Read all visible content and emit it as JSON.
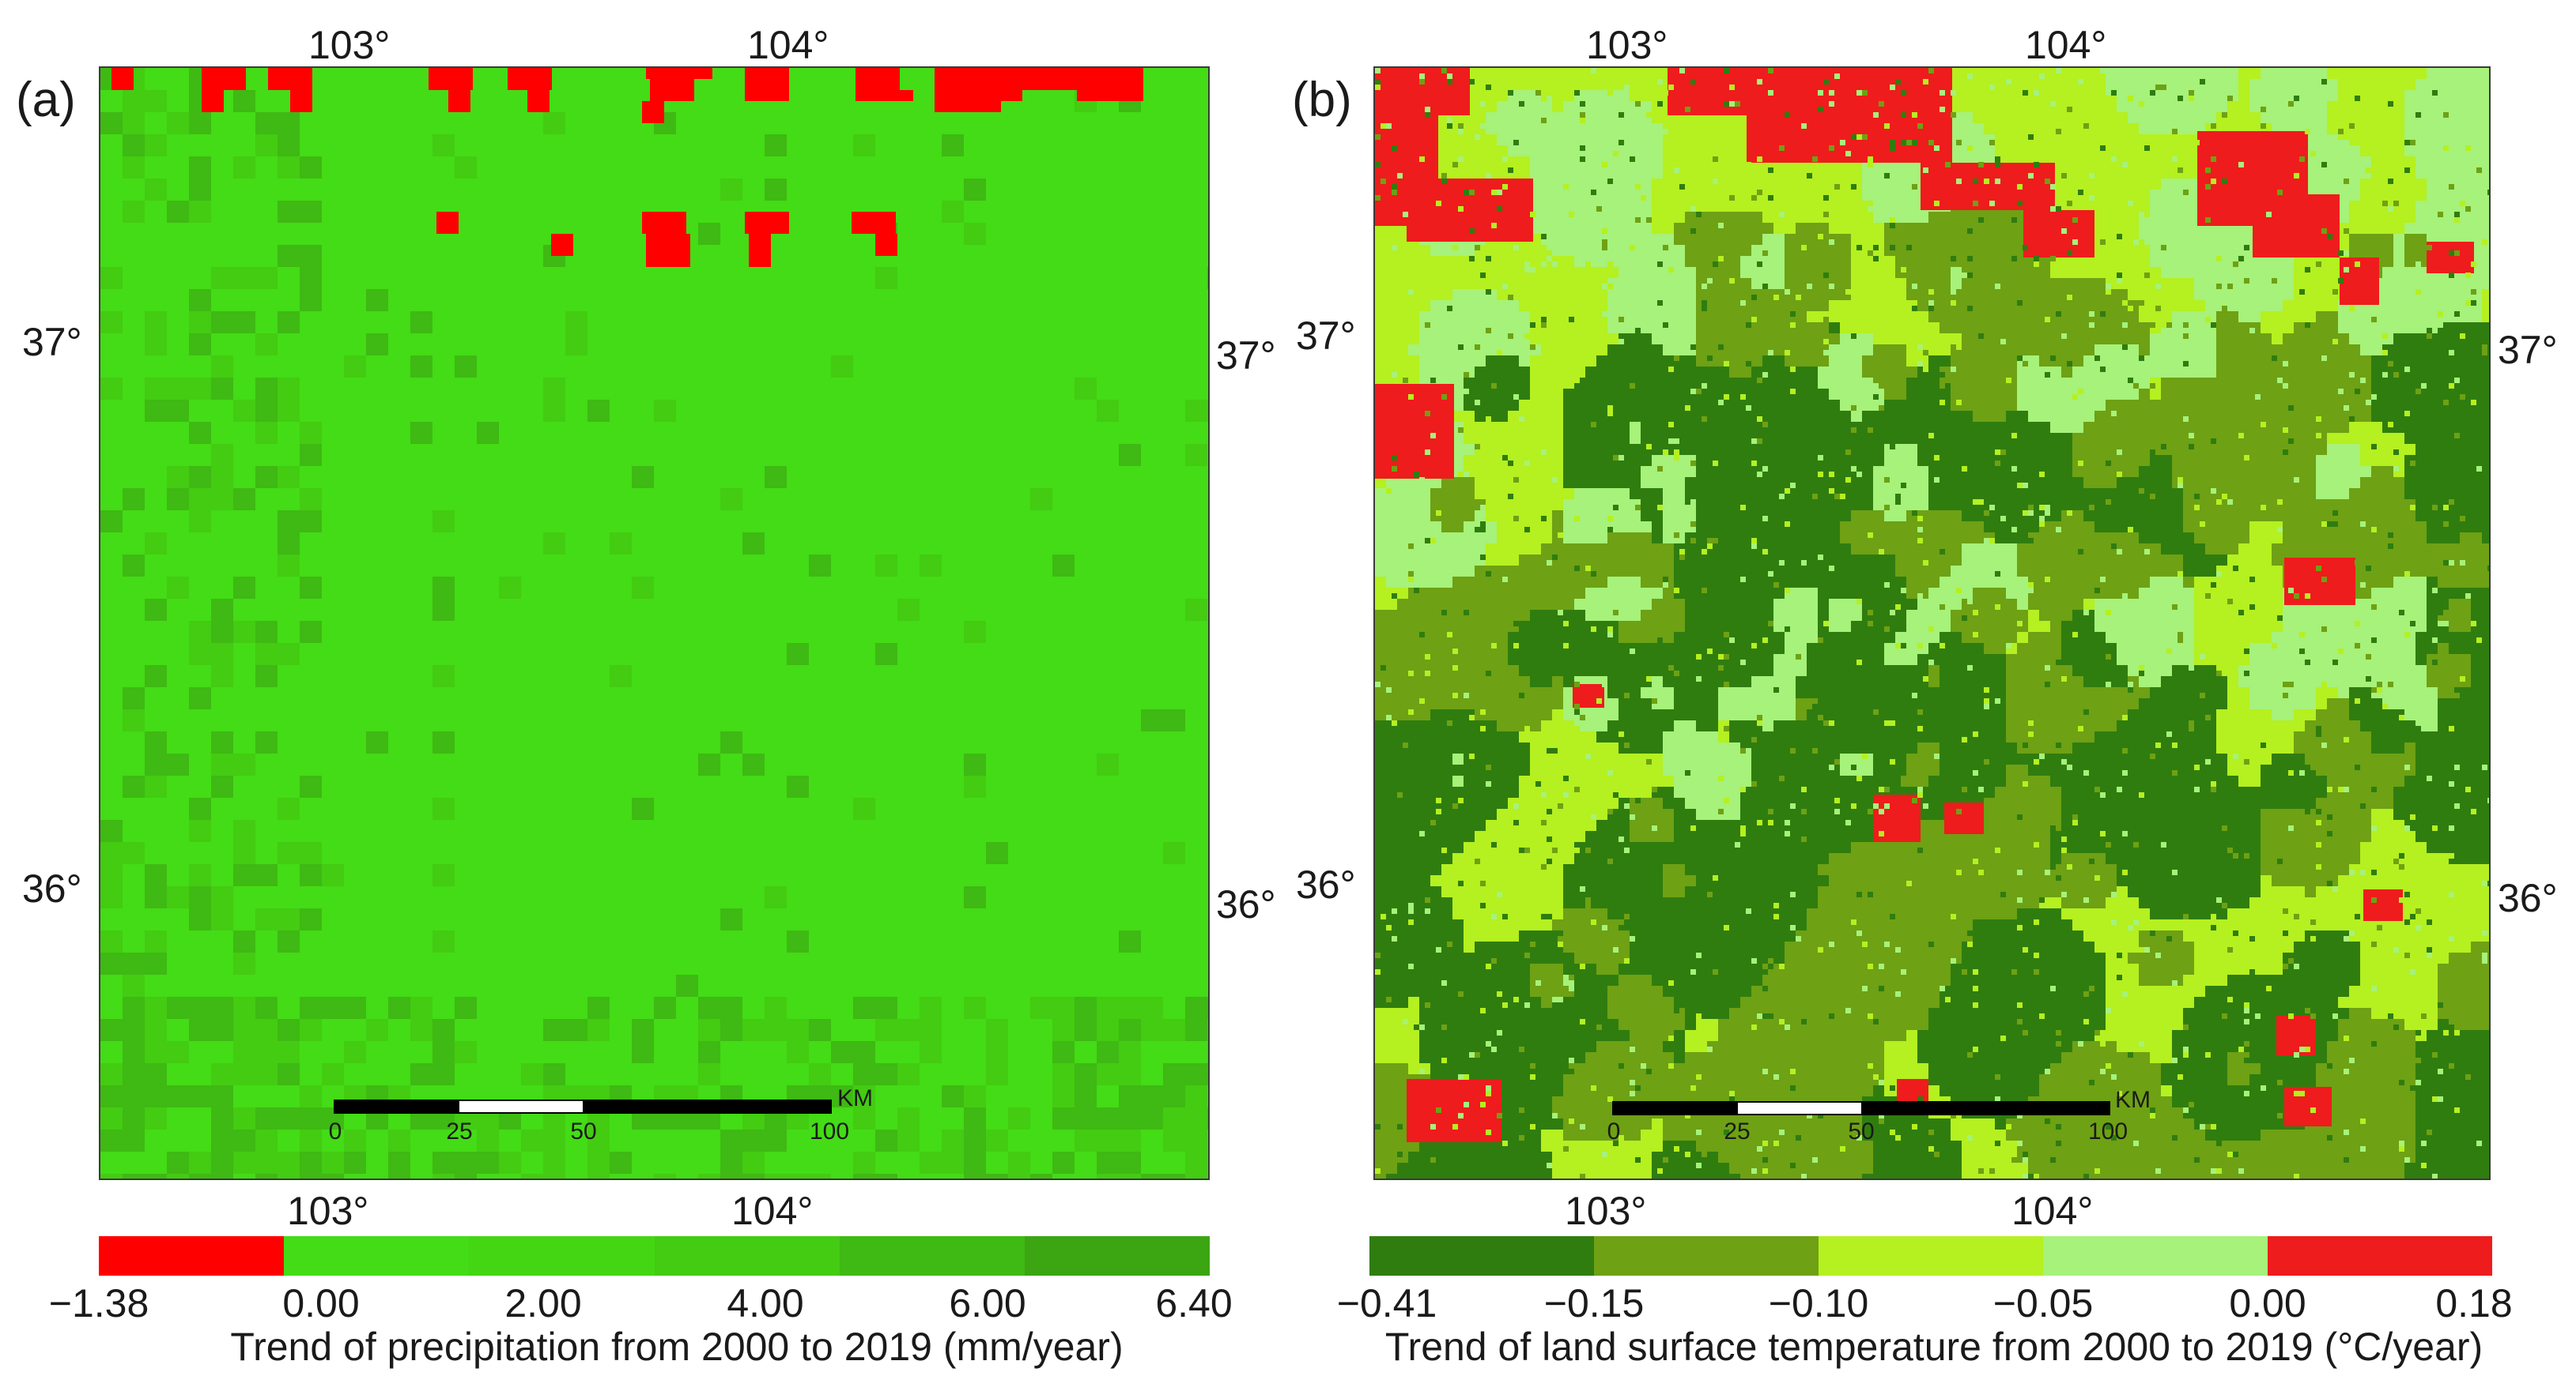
{
  "panels": [
    {
      "label": "(a)",
      "top_lon_labels": [
        "103°",
        "104°"
      ],
      "bottom_lon_labels": [
        "103°",
        "104°"
      ],
      "left_lat_labels": [
        "37°",
        "36°"
      ],
      "right_lat_labels": [
        "37°",
        "36°"
      ],
      "colorbar": {
        "colors": [
          "#ff0000",
          "#43dc16",
          "#44d612",
          "#43cc12",
          "#3fb913",
          "#3ca512"
        ],
        "tick_labels": [
          "−1.38",
          "0.00",
          "2.00",
          "4.00",
          "6.00",
          "6.40"
        ],
        "title": "Trend of precipitation from 2000 to 2019 (mm/year)"
      },
      "scalebar": {
        "tick_labels": [
          "0",
          "25",
          "50",
          "100"
        ],
        "unit": "KM"
      }
    },
    {
      "label": "(b)",
      "top_lon_labels": [
        "103°",
        "104°"
      ],
      "bottom_lon_labels": [
        "103°",
        "104°"
      ],
      "left_lat_labels": [
        "37°",
        "36°"
      ],
      "right_lat_labels": [
        "37°",
        "36°"
      ],
      "colorbar": {
        "colors": [
          "#2f7d0f",
          "#6ea114",
          "#b5f020",
          "#a6f27a",
          "#ee1c1c"
        ],
        "tick_labels": [
          "−0.41",
          "−0.15",
          "−0.10",
          "−0.05",
          "0.00",
          "0.18"
        ],
        "title": "Trend of land surface temperature from 2000 to 2019 (°C/year)"
      },
      "scalebar": {
        "tick_labels": [
          "0",
          "25",
          "50",
          "100"
        ],
        "unit": "KM"
      }
    }
  ]
}
